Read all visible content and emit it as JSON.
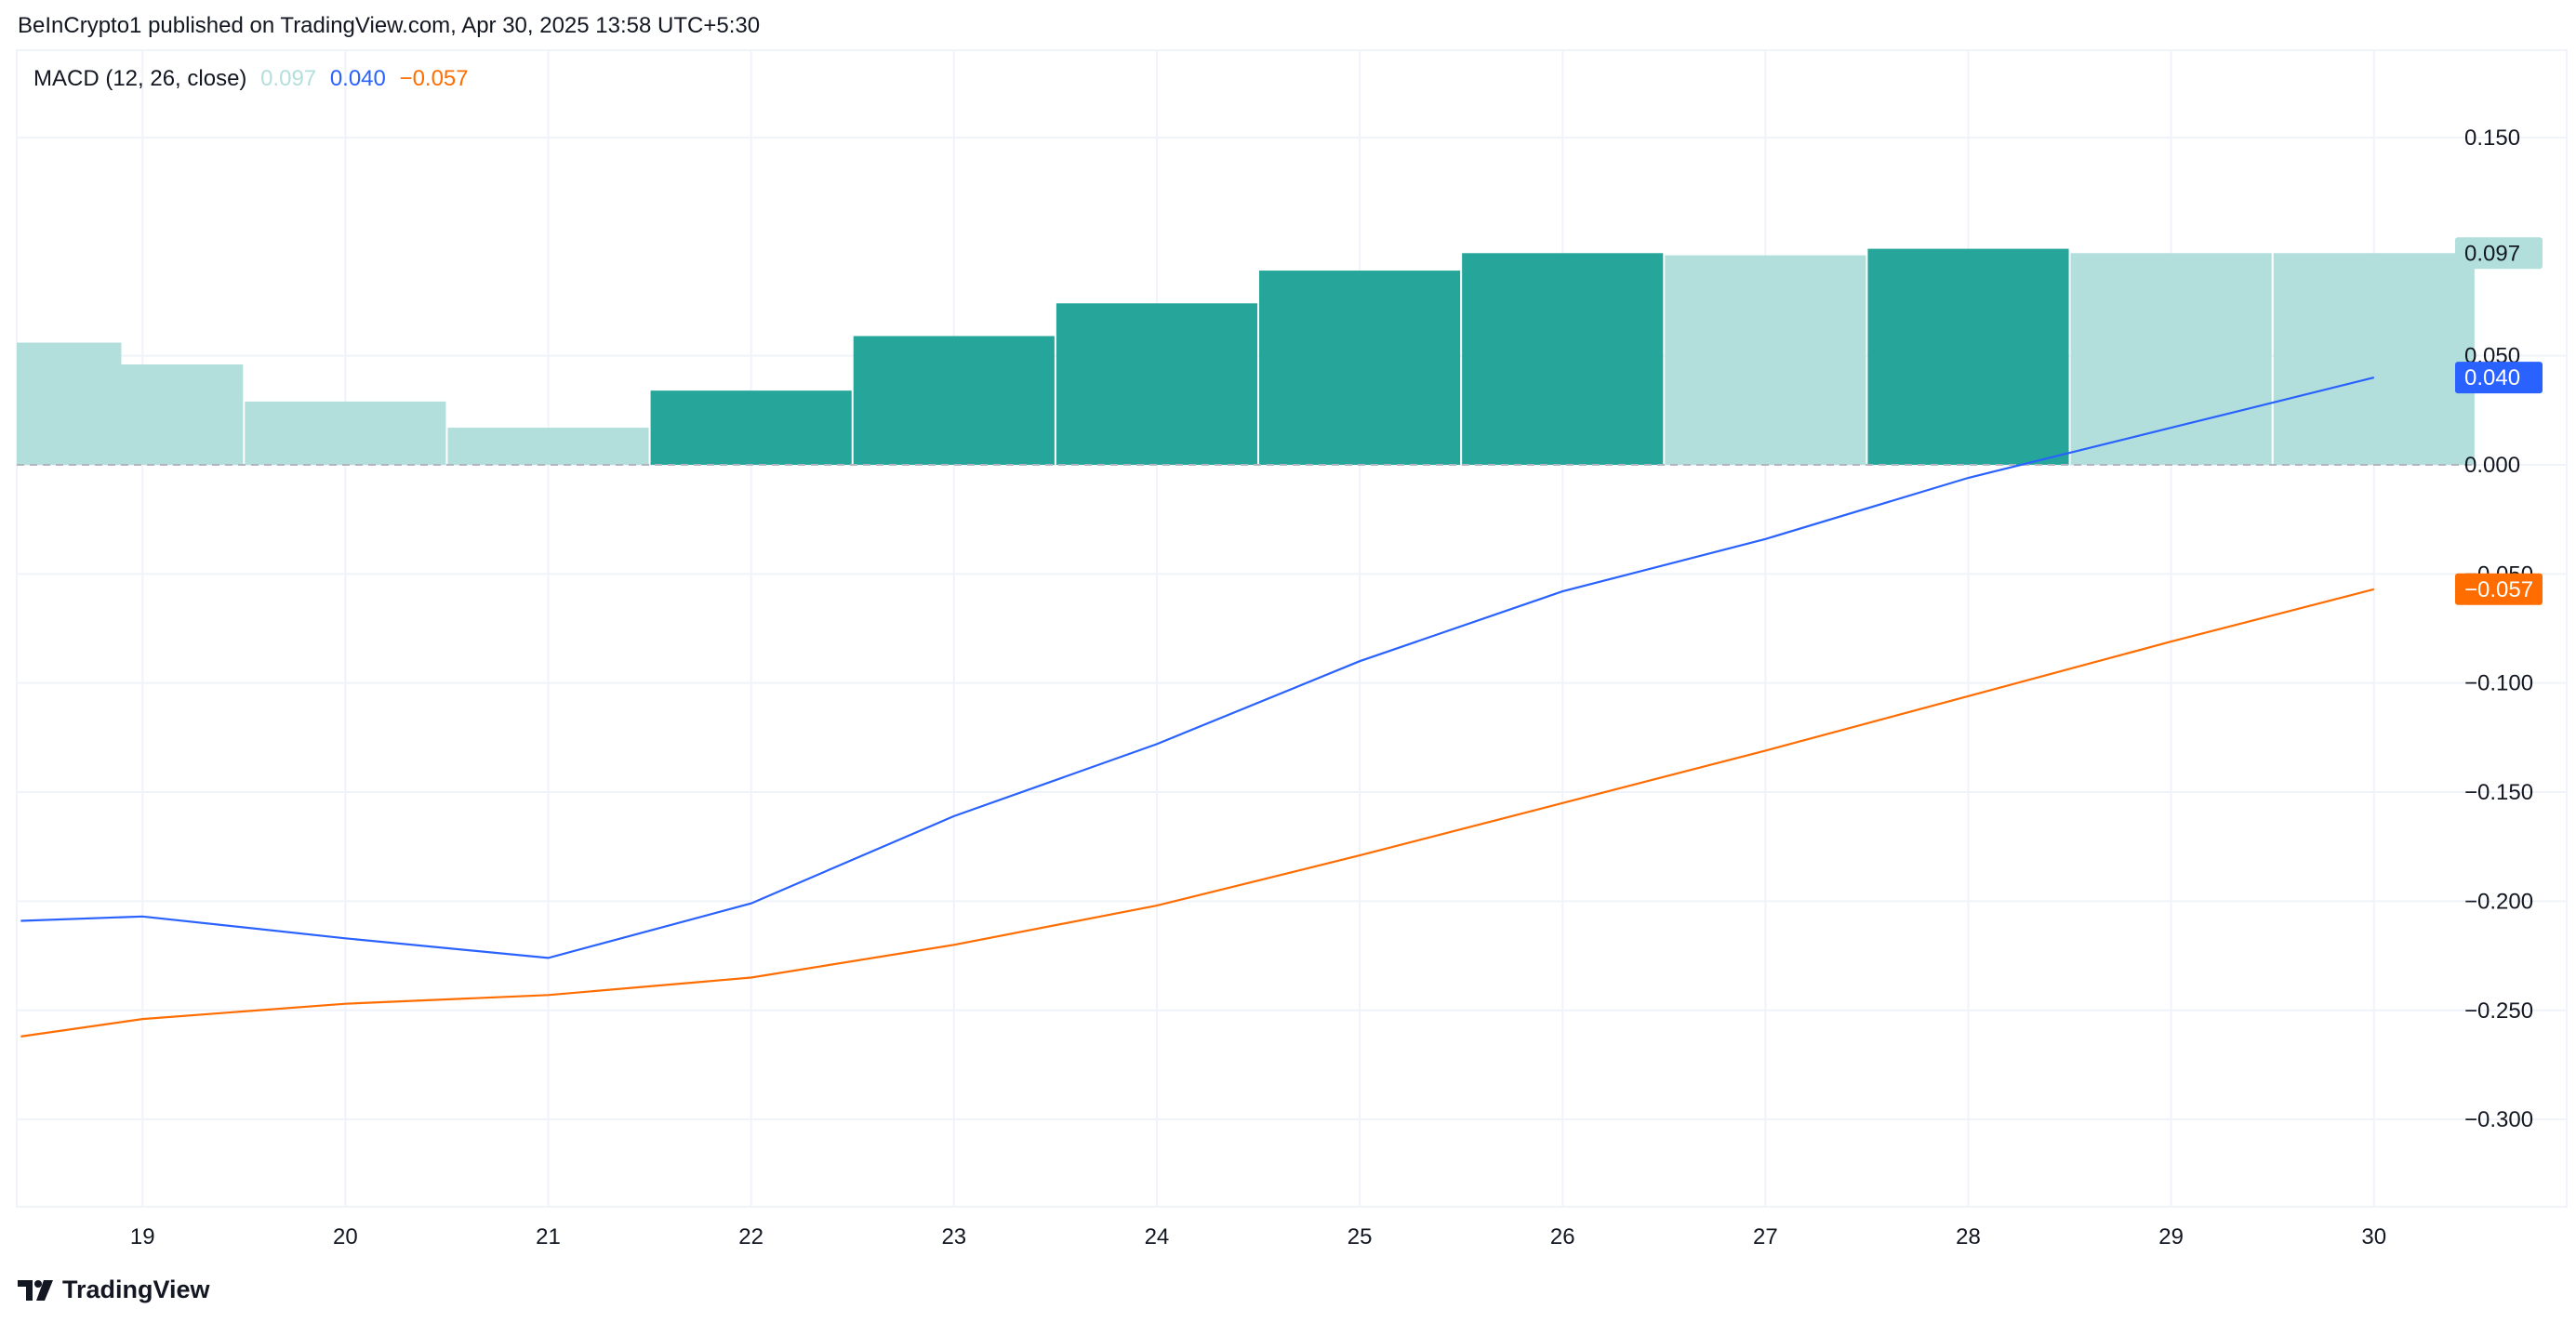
{
  "header": {
    "published_text": "BeInCrypto1 published on TradingView.com, Apr 30, 2025 13:58 UTC+5:30"
  },
  "legend": {
    "title": "MACD (12, 26, close)",
    "histogram_value": "0.097",
    "macd_value": "0.040",
    "signal_value": "−0.057"
  },
  "brand": {
    "name": "TradingView",
    "icon": "tradingview-logo-icon"
  },
  "colors": {
    "histogram_light": "#b2dfdb",
    "histogram_dark": "#26a69a",
    "macd_line": "#2962ff",
    "signal_line": "#ff6d00",
    "grid": "#f0f3fa",
    "text": "#131722"
  },
  "chart_data": {
    "type": "line",
    "title": "MACD (12, 26, close)",
    "x": [
      18.4,
      19,
      20,
      21,
      22,
      23,
      24,
      25,
      26,
      27,
      28,
      29,
      30
    ],
    "x_ticks": [
      "19",
      "20",
      "21",
      "22",
      "23",
      "24",
      "25",
      "26",
      "27",
      "28",
      "29",
      "30"
    ],
    "y_ticks": [
      "0.150",
      "0.050",
      "0.000",
      "−0.050",
      "−0.100",
      "−0.150",
      "−0.200",
      "−0.250",
      "−0.300"
    ],
    "y_tick_values": [
      0.15,
      0.05,
      0.0,
      -0.05,
      -0.1,
      -0.15,
      -0.2,
      -0.25,
      -0.3
    ],
    "ylim": [
      -0.34,
      0.19
    ],
    "xlim": [
      18.38,
      30.95
    ],
    "grid": true,
    "histogram": {
      "x": [
        18.4,
        19,
        20,
        21,
        22,
        23,
        24,
        25,
        26,
        27,
        28,
        29,
        30
      ],
      "values": [
        0.056,
        0.046,
        0.029,
        0.017,
        0.034,
        0.059,
        0.074,
        0.089,
        0.097,
        0.096,
        0.099,
        0.097,
        0.097
      ],
      "rising": [
        false,
        false,
        false,
        false,
        true,
        true,
        true,
        true,
        true,
        false,
        true,
        false,
        false
      ]
    },
    "series": [
      {
        "values": [
          -0.209,
          -0.207,
          -0.217,
          -0.226,
          -0.201,
          -0.161,
          -0.128,
          -0.09,
          -0.058,
          -0.034,
          -0.006,
          0.017,
          0.04
        ]
      },
      {
        "values": [
          -0.262,
          -0.254,
          -0.247,
          -0.243,
          -0.235,
          -0.22,
          -0.202,
          -0.179,
          -0.155,
          -0.131,
          -0.106,
          -0.081,
          -0.057
        ]
      }
    ],
    "last_value_labels": {
      "histogram": "0.097",
      "macd": "0.040",
      "signal": "−0.057"
    }
  }
}
